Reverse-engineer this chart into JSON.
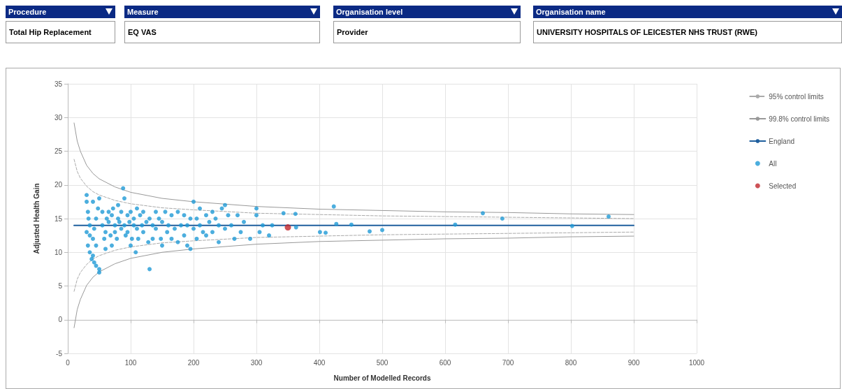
{
  "chart_data": {
    "type": "scatter",
    "xlabel": "Number of Modelled Records",
    "ylabel": "Adjusted Health Gain",
    "annotations": [
      "Procedure",
      "Total Hip Replacement",
      "Measure",
      "EQ VAS",
      "Organisation level",
      "Provider",
      "Organisation name",
      "UNIVERSITY HOSPITALS OF LEICESTER NHS TRUST (RWE)"
    ],
    "xlim": [
      0,
      1000
    ],
    "xticks": [
      0,
      100,
      200,
      300,
      400,
      500,
      600,
      700,
      800,
      900,
      {
        "value": 1000,
        "label": "1000"
      }
    ],
    "ylim": [
      -5,
      35
    ],
    "yticks": [
      -5,
      0,
      5,
      10,
      15,
      20,
      25,
      30,
      35
    ],
    "grid": true,
    "legend": "right",
    "series": [
      {
        "name": "95% control limits",
        "type": "line",
        "color": "#aaaaaa",
        "line_style": "dashed",
        "marker": "none",
        "x": [
          10,
          15,
          20,
          30,
          40,
          50,
          75,
          100,
          150,
          200,
          300,
          400,
          500,
          600,
          700,
          800,
          900
        ],
        "values": [
          23.8,
          22,
          21,
          19.8,
          19,
          18.5,
          17.7,
          17.2,
          16.6,
          16.3,
          15.8,
          15.6,
          15.4,
          15.3,
          15.2,
          15.1,
          15.0
        ]
      },
      {
        "type": "line",
        "color": "#aaaaaa",
        "line_style": "dashed",
        "marker": "none",
        "x": [
          10,
          15,
          20,
          30,
          40,
          50,
          75,
          100,
          150,
          200,
          300,
          400,
          500,
          600,
          700,
          800,
          900
        ],
        "values": [
          4.2,
          6,
          7,
          8.2,
          9,
          9.5,
          10.3,
          10.8,
          11.4,
          11.7,
          12.2,
          12.4,
          12.6,
          12.7,
          12.8,
          12.9,
          13.0
        ]
      },
      {
        "name": "99.8% control limits",
        "type": "line",
        "color": "#999999",
        "line_style": "solid",
        "marker": "none",
        "x": [
          10,
          15,
          20,
          30,
          40,
          50,
          75,
          100,
          150,
          200,
          300,
          400,
          500,
          600,
          700,
          800,
          900
        ],
        "values": [
          29.2,
          26.5,
          25,
          22.9,
          21.7,
          20.9,
          19.7,
          18.9,
          18,
          17.5,
          16.8,
          16.4,
          16.2,
          16,
          15.9,
          15.7,
          15.6
        ]
      },
      {
        "type": "line",
        "color": "#999999",
        "line_style": "solid",
        "marker": "none",
        "x": [
          10,
          15,
          20,
          30,
          40,
          50,
          75,
          100,
          150,
          200,
          300,
          400,
          500,
          600,
          700,
          800,
          900
        ],
        "values": [
          -1.2,
          1.5,
          3,
          5.1,
          6.3,
          7.1,
          8.3,
          9.1,
          10,
          10.5,
          11.2,
          11.6,
          11.8,
          12,
          12.1,
          12.3,
          12.4
        ]
      },
      {
        "name": "England",
        "type": "line",
        "color": "#1f5f9e",
        "line_style": "solid",
        "marker": "none",
        "x": [
          10,
          900
        ],
        "values": [
          14,
          14
        ]
      },
      {
        "name": "All",
        "color": "#1f9ad6",
        "marker": "circle",
        "x": [
          30,
          30,
          32,
          33,
          35,
          30,
          35,
          32,
          35,
          38,
          40,
          42,
          45,
          50,
          50,
          45,
          40,
          42,
          45,
          48,
          50,
          40,
          55,
          55,
          58,
          60,
          60,
          62,
          65,
          65,
          68,
          70,
          70,
          72,
          75,
          75,
          78,
          80,
          80,
          82,
          85,
          85,
          88,
          90,
          90,
          92,
          95,
          95,
          98,
          100,
          100,
          102,
          105,
          105,
          108,
          110,
          110,
          112,
          115,
          118,
          120,
          120,
          125,
          128,
          130,
          130,
          135,
          135,
          140,
          140,
          145,
          148,
          150,
          150,
          155,
          158,
          160,
          165,
          165,
          170,
          175,
          175,
          180,
          185,
          185,
          190,
          190,
          195,
          195,
          200,
          200,
          205,
          205,
          210,
          210,
          215,
          220,
          220,
          225,
          230,
          230,
          235,
          240,
          240,
          245,
          250,
          250,
          255,
          260,
          265,
          270,
          275,
          280,
          290,
          300,
          300,
          305,
          310,
          320,
          325,
          343,
          362,
          363,
          401,
          410,
          423,
          427,
          451,
          480,
          500,
          616,
          660,
          691,
          802,
          860
        ],
        "values": [
          18.5,
          17.5,
          16,
          15,
          14,
          13,
          12.5,
          11,
          10,
          9,
          9.5,
          8.5,
          8,
          7.5,
          7,
          11,
          12,
          13.5,
          15,
          16.5,
          18,
          17.5,
          16,
          14,
          12,
          10.5,
          13,
          15,
          16,
          14.5,
          12.5,
          11,
          15.5,
          16.5,
          14,
          13,
          12,
          15,
          17,
          14.5,
          13.5,
          16,
          19.5,
          18,
          14,
          12.5,
          15.5,
          13,
          14.5,
          16,
          11,
          12,
          14,
          15,
          10,
          16.5,
          13.5,
          12,
          15.5,
          14,
          13,
          16,
          14.5,
          11.5,
          7.5,
          15,
          14,
          12,
          16,
          13.5,
          15,
          12,
          14.5,
          11,
          16,
          13,
          14,
          12,
          15.5,
          13.5,
          16,
          11.5,
          14,
          15.5,
          12.5,
          14,
          11,
          15,
          10.5,
          17.5,
          13.5,
          15,
          12,
          14,
          16.5,
          13,
          15.5,
          12.5,
          14.5,
          16,
          13,
          15,
          14,
          11.5,
          16.5,
          17,
          13.5,
          15.5,
          14,
          12,
          15.5,
          13,
          14.5,
          12,
          16.5,
          15.5,
          13,
          14,
          12.5,
          14,
          15.8,
          15.7,
          13.7,
          13,
          12.9,
          16.8,
          14.2,
          14.1,
          13.1,
          13.3,
          14.1,
          15.8,
          15,
          13.9,
          15.3
        ]
      },
      {
        "name": "Selected",
        "color": "#c0272d",
        "marker": "circle",
        "x": [
          350
        ],
        "values": [
          13.7
        ]
      }
    ]
  }
}
